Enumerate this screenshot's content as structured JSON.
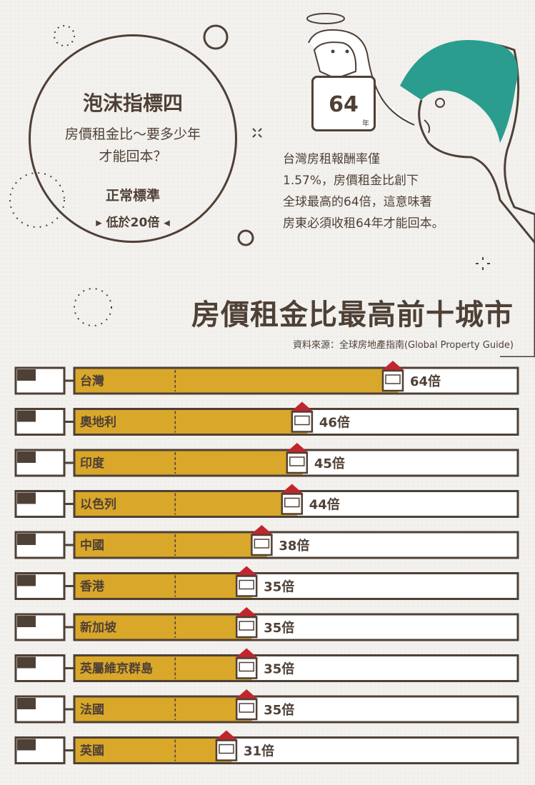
{
  "bubble": {
    "title": "泡沫指標四",
    "subtitle_line1": "房價租金比～要多少年",
    "subtitle_line2": "才能回本？",
    "normal_label": "正常標準",
    "normal_value": "低於20倍"
  },
  "calendar": {
    "number": "64",
    "unit": "年"
  },
  "description": {
    "line1": "台灣房租報酬率僅",
    "line2": "1.57%，房價租金比創下",
    "line3": "全球最高的64倍，這意味著",
    "line4": "房東必須收租64年才能回本。"
  },
  "chart_data": {
    "type": "bar",
    "title": "房價租金比最高前十城市",
    "source": "資料來源：全球房地產指南(Global Property Guide)",
    "categories": [
      "台灣",
      "奧地利",
      "印度",
      "以色列",
      "中國",
      "香港",
      "新加坡",
      "英屬維京群島",
      "法國",
      "英國"
    ],
    "values": [
      64,
      46,
      45,
      44,
      38,
      35,
      35,
      35,
      35,
      31
    ],
    "value_labels": [
      "64倍",
      "46倍",
      "45倍",
      "44倍",
      "38倍",
      "35倍",
      "35倍",
      "35倍",
      "35倍",
      "31倍"
    ],
    "reference_line": 20,
    "colors": {
      "bar": "#d9a72a",
      "outline": "#4f4036",
      "house_roof": "#c0262d",
      "bg": "#f2f1ee"
    }
  }
}
